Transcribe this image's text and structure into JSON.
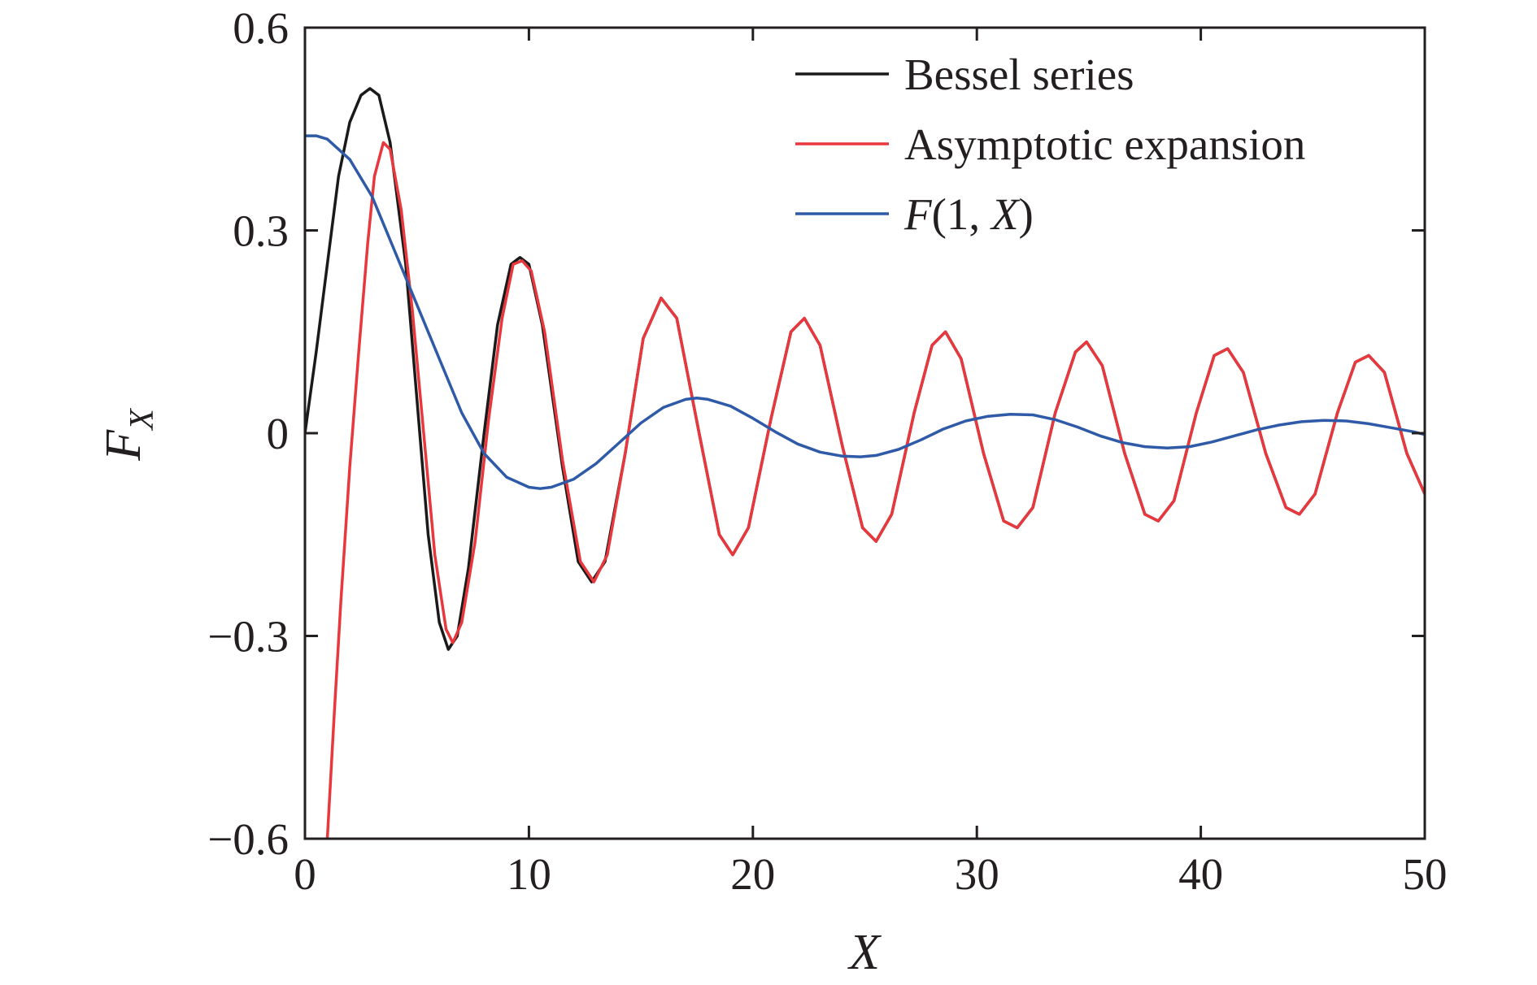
{
  "chart_data": {
    "type": "line",
    "xlabel": "X",
    "ylabel": {
      "main": "F",
      "sub": "X"
    },
    "xlim": [
      0,
      50
    ],
    "ylim": [
      -0.6,
      0.6
    ],
    "x_ticks": [
      0,
      10,
      20,
      30,
      40,
      50
    ],
    "x_tick_labels": [
      "0",
      "10",
      "20",
      "30",
      "40",
      "50"
    ],
    "y_ticks": [
      -0.6,
      -0.3,
      0,
      0.3,
      0.6
    ],
    "y_tick_labels": [
      "−0.6",
      "−0.3",
      "0",
      "0.3",
      "0.6"
    ],
    "grid": false,
    "legend_position": "top-right",
    "series": [
      {
        "name": "Bessel series",
        "color": "#1a1a1a",
        "points": [
          [
            0,
            0
          ],
          [
            0.5,
            0.12
          ],
          [
            1,
            0.25
          ],
          [
            1.5,
            0.38
          ],
          [
            2,
            0.46
          ],
          [
            2.5,
            0.5
          ],
          [
            2.9,
            0.51
          ],
          [
            3.3,
            0.5
          ],
          [
            3.8,
            0.43
          ],
          [
            4.5,
            0.25
          ],
          [
            5,
            0.05
          ],
          [
            5.5,
            -0.15
          ],
          [
            6,
            -0.28
          ],
          [
            6.4,
            -0.32
          ],
          [
            6.8,
            -0.3
          ],
          [
            7.3,
            -0.2
          ],
          [
            8,
            0.0
          ],
          [
            8.6,
            0.16
          ],
          [
            9.2,
            0.25
          ],
          [
            9.6,
            0.26
          ],
          [
            10,
            0.25
          ],
          [
            10.6,
            0.16
          ],
          [
            11.5,
            -0.05
          ],
          [
            12.2,
            -0.19
          ],
          [
            12.8,
            -0.22
          ],
          [
            13.4,
            -0.19
          ],
          [
            14.3,
            -0.03
          ],
          [
            15.1,
            0.14
          ],
          [
            15.9,
            0.2
          ],
          [
            16.6,
            0.17
          ],
          [
            17.6,
            0.0
          ],
          [
            18.5,
            -0.15
          ],
          [
            19.1,
            -0.18
          ],
          [
            19.8,
            -0.14
          ],
          [
            20.8,
            0.02
          ],
          [
            21.7,
            0.15
          ],
          [
            22.3,
            0.17
          ],
          [
            23.0,
            0.13
          ],
          [
            24.0,
            -0.02
          ],
          [
            24.9,
            -0.14
          ],
          [
            25.5,
            -0.16
          ],
          [
            26.2,
            -0.12
          ],
          [
            27.2,
            0.03
          ],
          [
            28.0,
            0.13
          ],
          [
            28.6,
            0.15
          ],
          [
            29.3,
            0.11
          ],
          [
            30.3,
            -0.03
          ],
          [
            31.2,
            -0.13
          ],
          [
            31.8,
            -0.14
          ],
          [
            32.5,
            -0.11
          ],
          [
            33.5,
            0.03
          ],
          [
            34.4,
            0.12
          ],
          [
            34.9,
            0.135
          ],
          [
            35.6,
            0.1
          ],
          [
            36.6,
            -0.03
          ],
          [
            37.5,
            -0.12
          ],
          [
            38.1,
            -0.13
          ],
          [
            38.8,
            -0.1
          ],
          [
            39.8,
            0.03
          ],
          [
            40.6,
            0.115
          ],
          [
            41.2,
            0.125
          ],
          [
            41.9,
            0.09
          ],
          [
            42.9,
            -0.03
          ],
          [
            43.8,
            -0.11
          ],
          [
            44.4,
            -0.12
          ],
          [
            45.1,
            -0.09
          ],
          [
            46.1,
            0.03
          ],
          [
            46.9,
            0.105
          ],
          [
            47.5,
            0.115
          ],
          [
            48.2,
            0.09
          ],
          [
            49.2,
            -0.03
          ],
          [
            50,
            -0.09
          ]
        ]
      },
      {
        "name": "Asymptotic expansion",
        "color": "#e8383d",
        "points": [
          [
            1.0,
            -0.6
          ],
          [
            1.3,
            -0.42
          ],
          [
            1.6,
            -0.25
          ],
          [
            2.0,
            -0.05
          ],
          [
            2.4,
            0.12
          ],
          [
            2.8,
            0.28
          ],
          [
            3.1,
            0.38
          ],
          [
            3.5,
            0.43
          ],
          [
            3.8,
            0.42
          ],
          [
            4.3,
            0.33
          ],
          [
            4.8,
            0.18
          ],
          [
            5.3,
            0.0
          ],
          [
            5.8,
            -0.18
          ],
          [
            6.3,
            -0.29
          ],
          [
            6.6,
            -0.31
          ],
          [
            7.0,
            -0.28
          ],
          [
            7.6,
            -0.16
          ],
          [
            8.2,
            0.02
          ],
          [
            8.8,
            0.17
          ],
          [
            9.3,
            0.25
          ],
          [
            9.7,
            0.255
          ],
          [
            10.1,
            0.24
          ],
          [
            10.7,
            0.15
          ],
          [
            11.5,
            -0.04
          ],
          [
            12.3,
            -0.19
          ],
          [
            12.9,
            -0.22
          ],
          [
            13.5,
            -0.18
          ],
          [
            14.3,
            -0.03
          ],
          [
            15.1,
            0.14
          ],
          [
            15.9,
            0.2
          ],
          [
            16.6,
            0.17
          ],
          [
            17.6,
            0.0
          ],
          [
            18.5,
            -0.15
          ],
          [
            19.1,
            -0.18
          ],
          [
            19.8,
            -0.14
          ],
          [
            20.8,
            0.02
          ],
          [
            21.7,
            0.15
          ],
          [
            22.3,
            0.17
          ],
          [
            23.0,
            0.13
          ],
          [
            24.0,
            -0.02
          ],
          [
            24.9,
            -0.14
          ],
          [
            25.5,
            -0.16
          ],
          [
            26.2,
            -0.12
          ],
          [
            27.2,
            0.03
          ],
          [
            28.0,
            0.13
          ],
          [
            28.6,
            0.15
          ],
          [
            29.3,
            0.11
          ],
          [
            30.3,
            -0.03
          ],
          [
            31.2,
            -0.13
          ],
          [
            31.8,
            -0.14
          ],
          [
            32.5,
            -0.11
          ],
          [
            33.5,
            0.03
          ],
          [
            34.4,
            0.12
          ],
          [
            34.9,
            0.135
          ],
          [
            35.6,
            0.1
          ],
          [
            36.6,
            -0.03
          ],
          [
            37.5,
            -0.12
          ],
          [
            38.1,
            -0.13
          ],
          [
            38.8,
            -0.1
          ],
          [
            39.8,
            0.03
          ],
          [
            40.6,
            0.115
          ],
          [
            41.2,
            0.125
          ],
          [
            41.9,
            0.09
          ],
          [
            42.9,
            -0.03
          ],
          [
            43.8,
            -0.11
          ],
          [
            44.4,
            -0.12
          ],
          [
            45.1,
            -0.09
          ],
          [
            46.1,
            0.03
          ],
          [
            46.9,
            0.105
          ],
          [
            47.5,
            0.115
          ],
          [
            48.2,
            0.09
          ],
          [
            49.2,
            -0.03
          ],
          [
            50,
            -0.09
          ]
        ]
      },
      {
        "name": "F(1, X)",
        "label_parts": [
          "F",
          "(1, ",
          "X",
          ")"
        ],
        "color": "#2f5aa8",
        "points": [
          [
            0,
            0.44
          ],
          [
            0.5,
            0.44
          ],
          [
            1,
            0.435
          ],
          [
            2,
            0.405
          ],
          [
            3,
            0.35
          ],
          [
            4,
            0.27
          ],
          [
            5,
            0.19
          ],
          [
            6,
            0.11
          ],
          [
            7,
            0.03
          ],
          [
            8,
            -0.03
          ],
          [
            9,
            -0.065
          ],
          [
            10,
            -0.08
          ],
          [
            10.5,
            -0.082
          ],
          [
            11,
            -0.08
          ],
          [
            12,
            -0.068
          ],
          [
            13,
            -0.045
          ],
          [
            14,
            -0.015
          ],
          [
            15,
            0.015
          ],
          [
            16,
            0.038
          ],
          [
            17,
            0.05
          ],
          [
            17.5,
            0.052
          ],
          [
            18,
            0.05
          ],
          [
            19,
            0.04
          ],
          [
            20,
            0.022
          ],
          [
            21,
            0.002
          ],
          [
            22,
            -0.016
          ],
          [
            23,
            -0.028
          ],
          [
            24,
            -0.034
          ],
          [
            24.8,
            -0.035
          ],
          [
            25.5,
            -0.033
          ],
          [
            26.5,
            -0.024
          ],
          [
            27.5,
            -0.01
          ],
          [
            28.5,
            0.006
          ],
          [
            29.5,
            0.018
          ],
          [
            30.5,
            0.025
          ],
          [
            31.5,
            0.028
          ],
          [
            32.5,
            0.027
          ],
          [
            33.5,
            0.02
          ],
          [
            34.5,
            0.009
          ],
          [
            35.5,
            -0.004
          ],
          [
            36.5,
            -0.014
          ],
          [
            37.5,
            -0.02
          ],
          [
            38.5,
            -0.022
          ],
          [
            39.5,
            -0.02
          ],
          [
            40.5,
            -0.013
          ],
          [
            41.5,
            -0.004
          ],
          [
            42.5,
            0.005
          ],
          [
            43.5,
            0.012
          ],
          [
            44.5,
            0.017
          ],
          [
            45.5,
            0.019
          ],
          [
            46.5,
            0.018
          ],
          [
            47.5,
            0.014
          ],
          [
            48.5,
            0.008
          ],
          [
            49.5,
            0.002
          ],
          [
            50,
            -0.002
          ]
        ]
      }
    ]
  }
}
